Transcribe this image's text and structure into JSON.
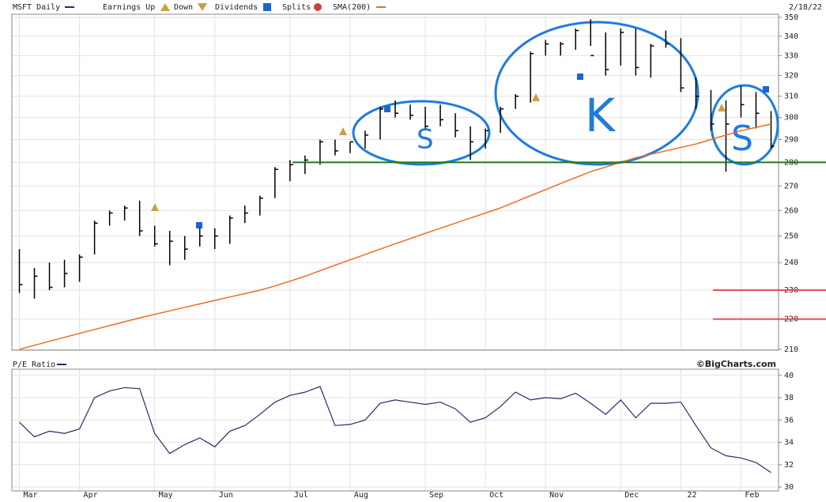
{
  "chart_data": [
    {
      "type": "ohlc",
      "date": "2/18/22",
      "legend_items": [
        "Earnings Up",
        "Down",
        "Dividends",
        "Splits"
      ],
      "series": [
        {
          "name": "MSFT Daily",
          "color": "#000000",
          "high": [
            245,
            238,
            240,
            241,
            243,
            256,
            260,
            262,
            264,
            254,
            252,
            250,
            253,
            253,
            258,
            262,
            266,
            278,
            281,
            283,
            290,
            290,
            289,
            294,
            305,
            308,
            306,
            305,
            306,
            302,
            296,
            295,
            305,
            311,
            332,
            338,
            337,
            344,
            349,
            342,
            344,
            344,
            336,
            343,
            339,
            319,
            313,
            308,
            315,
            312,
            303
          ],
          "low": [
            229,
            227,
            230,
            231,
            233,
            243,
            254,
            256,
            250,
            246,
            239,
            241,
            246,
            245,
            247,
            255,
            258,
            265,
            272,
            275,
            279,
            283,
            284,
            286,
            290,
            300,
            299,
            295,
            296,
            291,
            281,
            286,
            293,
            304,
            307,
            330,
            330,
            333,
            335,
            320,
            325,
            320,
            319,
            334,
            312,
            304,
            294,
            276,
            300,
            295,
            286
          ],
          "close": [
            232,
            235,
            231,
            236,
            242,
            255,
            259,
            261,
            252,
            247,
            248,
            245,
            250,
            250,
            257,
            259,
            265,
            277,
            279,
            281,
            289,
            285,
            289,
            292,
            304,
            302,
            301,
            296,
            299,
            294,
            289,
            294,
            304,
            310,
            331,
            336,
            336,
            343,
            330,
            323,
            342,
            324,
            335,
            336,
            314,
            310,
            297,
            297,
            306,
            302,
            287
          ]
        },
        {
          "name": "SMA(200)",
          "color": "#f06a20",
          "values": [
            210,
            211.3,
            212.6,
            213.9,
            215.2,
            216.5,
            217.8,
            219.1,
            220.4,
            221.6,
            222.8,
            224,
            225.2,
            226.4,
            227.6,
            228.8,
            230,
            231.5,
            233.2,
            235,
            237,
            239,
            241,
            243,
            245,
            247,
            249,
            251,
            253,
            255,
            257,
            259,
            261,
            263.5,
            266,
            268.5,
            271,
            273.5,
            276,
            278,
            280,
            282,
            283.5,
            285,
            286.5,
            288,
            290,
            292,
            294,
            295.5,
            297
          ]
        }
      ],
      "log_scale": true,
      "grid": true,
      "ylim": [
        209.7,
        351.7
      ],
      "yticks": [
        210,
        220,
        230,
        240,
        250,
        260,
        270,
        280,
        290,
        300,
        310,
        320,
        330,
        340,
        350
      ],
      "annotations": {
        "hlines": [
          {
            "value": 280,
            "color": "#1a7a1a"
          },
          {
            "value": 230,
            "color": "#e05050"
          },
          {
            "value": 220,
            "color": "#e05050"
          }
        ],
        "texts": [
          "S",
          "K",
          "S"
        ]
      }
    },
    {
      "type": "line",
      "title": "P/E Ratio",
      "source": "©BigCharts.com",
      "categories": [
        "Mar",
        null,
        null,
        null,
        "Apr",
        null,
        null,
        null,
        null,
        "May",
        null,
        null,
        null,
        "Jun",
        null,
        null,
        null,
        null,
        "Jul",
        null,
        null,
        null,
        "Aug",
        null,
        null,
        null,
        null,
        "Sep",
        null,
        null,
        null,
        "Oct",
        null,
        null,
        null,
        "Nov",
        null,
        null,
        null,
        null,
        "Dec",
        null,
        null,
        null,
        "22",
        null,
        null,
        null,
        "Feb",
        null,
        null
      ],
      "series": [
        {
          "name": "P/E Ratio",
          "color": "#2a2a6a",
          "values": [
            35.8,
            34.5,
            35,
            34.8,
            35.2,
            38,
            38.6,
            38.9,
            38.8,
            34.8,
            33,
            33.8,
            34.4,
            33.6,
            35,
            35.5,
            36.5,
            37.6,
            38.2,
            38.5,
            39,
            35.5,
            35.6,
            36,
            37.5,
            37.8,
            37.6,
            37.4,
            37.6,
            37,
            35.8,
            36.2,
            37.2,
            38.5,
            37.8,
            38,
            37.9,
            38.4,
            37.5,
            36.5,
            37.8,
            36.2,
            37.5,
            37.5,
            37.6,
            35.5,
            33.5,
            32.8,
            32.6,
            32.2,
            31.3
          ]
        }
      ],
      "grid": true,
      "ylim": [
        29.65,
        40.55
      ],
      "yticks": [
        30,
        32,
        34,
        36,
        38,
        40
      ]
    }
  ]
}
